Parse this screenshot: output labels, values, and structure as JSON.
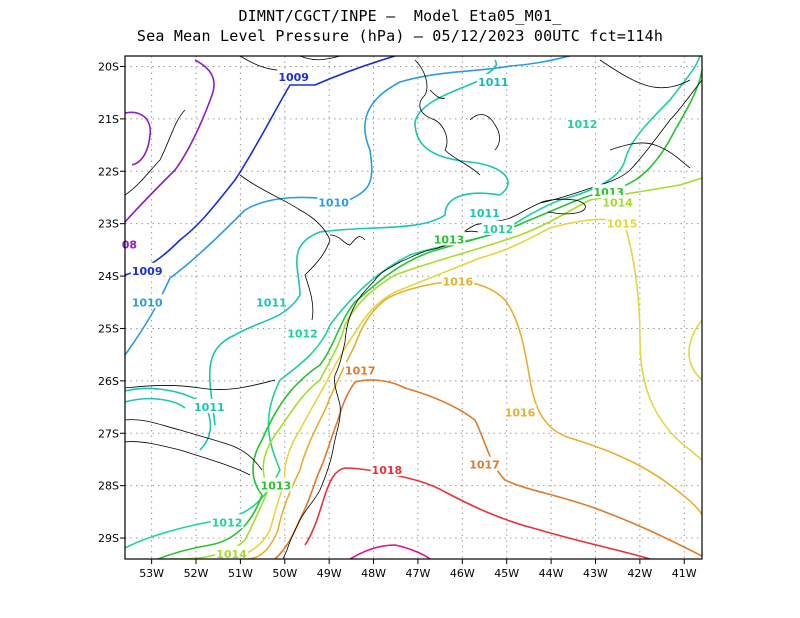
{
  "title": {
    "line1": "DIMNT/CGCT/INPE –  Model Eta05_M01_",
    "line2": "Sea Mean Level Pressure (hPa) – 05/12/2023 00UTC fct=114h"
  },
  "chart_data": {
    "type": "contour-map",
    "variable": "Sea Mean Level Pressure (hPa)",
    "longitude_range": [
      -53.6,
      -40.6
    ],
    "latitude_range": [
      -29.4,
      -19.8
    ],
    "x_ticks": [
      "53W",
      "52W",
      "51W",
      "50W",
      "49W",
      "48W",
      "47W",
      "46W",
      "45W",
      "44W",
      "43W",
      "42W",
      "41W"
    ],
    "y_ticks": [
      "20S",
      "21S",
      "22S",
      "23S",
      "24S",
      "25S",
      "26S",
      "27S",
      "28S",
      "29S"
    ],
    "contour_labels": [
      {
        "text": "1009",
        "lon": -49.8,
        "lat": -20.2,
        "color": "#1a2fd6"
      },
      {
        "text": "1011",
        "lon": -45.3,
        "lat": -20.3,
        "color": "#19b8b0"
      },
      {
        "text": "1012",
        "lon": -43.3,
        "lat": -21.1,
        "color": "#1fd39a"
      },
      {
        "text": "1010",
        "lon": -48.9,
        "lat": -22.6,
        "color": "#2a9de0"
      },
      {
        "text": "1013",
        "lon": -42.7,
        "lat": -22.4,
        "color": "#27c32f"
      },
      {
        "text": "1014",
        "lon": -42.5,
        "lat": -22.6,
        "color": "#a2dd2a"
      },
      {
        "text": "1015",
        "lon": -42.4,
        "lat": -23.0,
        "color": "#e4d640"
      },
      {
        "text": "1011",
        "lon": -45.5,
        "lat": -22.8,
        "color": "#19c6b0"
      },
      {
        "text": "1012",
        "lon": -45.2,
        "lat": -23.1,
        "color": "#1fd39a"
      },
      {
        "text": "1013",
        "lon": -46.3,
        "lat": -23.3,
        "color": "#27c32f"
      },
      {
        "text": "08",
        "lon": -53.5,
        "lat": -23.4,
        "color": "#8c1fc8"
      },
      {
        "text": "1009",
        "lon": -53.1,
        "lat": -23.9,
        "color": "#1a2fd6"
      },
      {
        "text": "1010",
        "lon": -53.1,
        "lat": -24.5,
        "color": "#2a9de0"
      },
      {
        "text": "1011",
        "lon": -50.3,
        "lat": -24.5,
        "color": "#19c6b0"
      },
      {
        "text": "1012",
        "lon": -49.6,
        "lat": -25.1,
        "color": "#1fd39a"
      },
      {
        "text": "1016",
        "lon": -46.1,
        "lat": -24.1,
        "color": "#e6b02e"
      },
      {
        "text": "1017",
        "lon": -48.3,
        "lat": -25.8,
        "color": "#e07a29"
      },
      {
        "text": "1011",
        "lon": -51.7,
        "lat": -26.5,
        "color": "#19c6b0"
      },
      {
        "text": "1016",
        "lon": -44.7,
        "lat": -26.6,
        "color": "#e6b02e"
      },
      {
        "text": "1017",
        "lon": -45.5,
        "lat": -27.6,
        "color": "#e07a29"
      },
      {
        "text": "1018",
        "lon": -47.7,
        "lat": -27.7,
        "color": "#e8323a"
      },
      {
        "text": "1013",
        "lon": -50.2,
        "lat": -28.0,
        "color": "#27c32f"
      },
      {
        "text": "1012",
        "lon": -51.3,
        "lat": -28.7,
        "color": "#1fd39a"
      },
      {
        "text": "1014",
        "lon": -51.2,
        "lat": -29.3,
        "color": "#a2dd2a"
      }
    ]
  },
  "colors": {
    "c1008": "#8c1fc8",
    "c1009": "#1a2fd6",
    "c1010": "#2a9de0",
    "c1011": "#19c6b0",
    "c1012": "#1fd39a",
    "c1013": "#27c32f",
    "c1014": "#a2dd2a",
    "c1015": "#e4d640",
    "c1016": "#e6b02e",
    "c1017": "#e07a29",
    "c1018": "#e8323a",
    "c1019": "#e0118a",
    "grid": "#9a9a9a",
    "coast": "#000000"
  }
}
